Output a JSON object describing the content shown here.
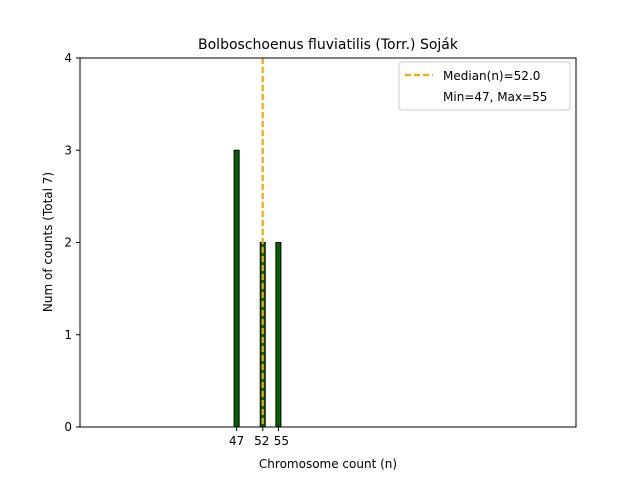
{
  "chart_data": {
    "type": "bar",
    "title": "Bolboschoenus fluviatilis (Torr.) Soják",
    "xlabel": "Chromosome count (n)",
    "ylabel": "Num of counts     (Total 7)",
    "x": [
      47,
      52,
      55
    ],
    "values": [
      3,
      2,
      2
    ],
    "xlim": [
      17,
      112
    ],
    "ylim": [
      0,
      4
    ],
    "xticks": [
      47,
      52,
      55
    ],
    "yticks": [
      0,
      1,
      2,
      3,
      4
    ],
    "bar_color": "#006400",
    "median": {
      "value": 52.0,
      "label": "Median(n)=52.0",
      "color": "#FFA500"
    },
    "legend": {
      "position": "top-right",
      "entries": [
        "Median(n)=52.0",
        "Min=47, Max=55"
      ]
    },
    "grid": false
  }
}
